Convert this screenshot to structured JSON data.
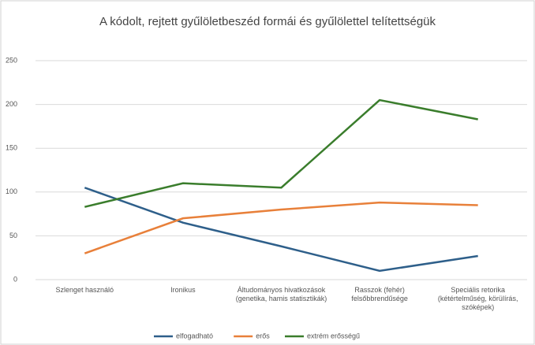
{
  "chart_data": {
    "type": "line",
    "title": "A kódolt, rejtett gyűlöletbeszéd formái és gyűlölettel telítettségük",
    "categories": [
      "Szlenget használó",
      "Ironikus",
      "Áltudományos hivatkozások (genetika, hamis statisztikák)",
      "Rasszok (fehér) felsőbbrendűsége",
      "Speciális retorika (kétértelműség, körülírás, szóképek)"
    ],
    "series": [
      {
        "name": "elfogadható",
        "color": "#2e5f8a",
        "values": [
          105,
          65,
          38,
          10,
          27
        ]
      },
      {
        "name": "erős",
        "color": "#e8803a",
        "values": [
          30,
          70,
          80,
          88,
          85
        ]
      },
      {
        "name": "extrém erősségű",
        "color": "#3a7d2c",
        "values": [
          83,
          110,
          105,
          205,
          183
        ]
      }
    ],
    "ylim": [
      0,
      250
    ],
    "yticks": [
      0,
      50,
      100,
      150,
      200,
      250
    ],
    "grid": true,
    "legend": "bottom"
  }
}
